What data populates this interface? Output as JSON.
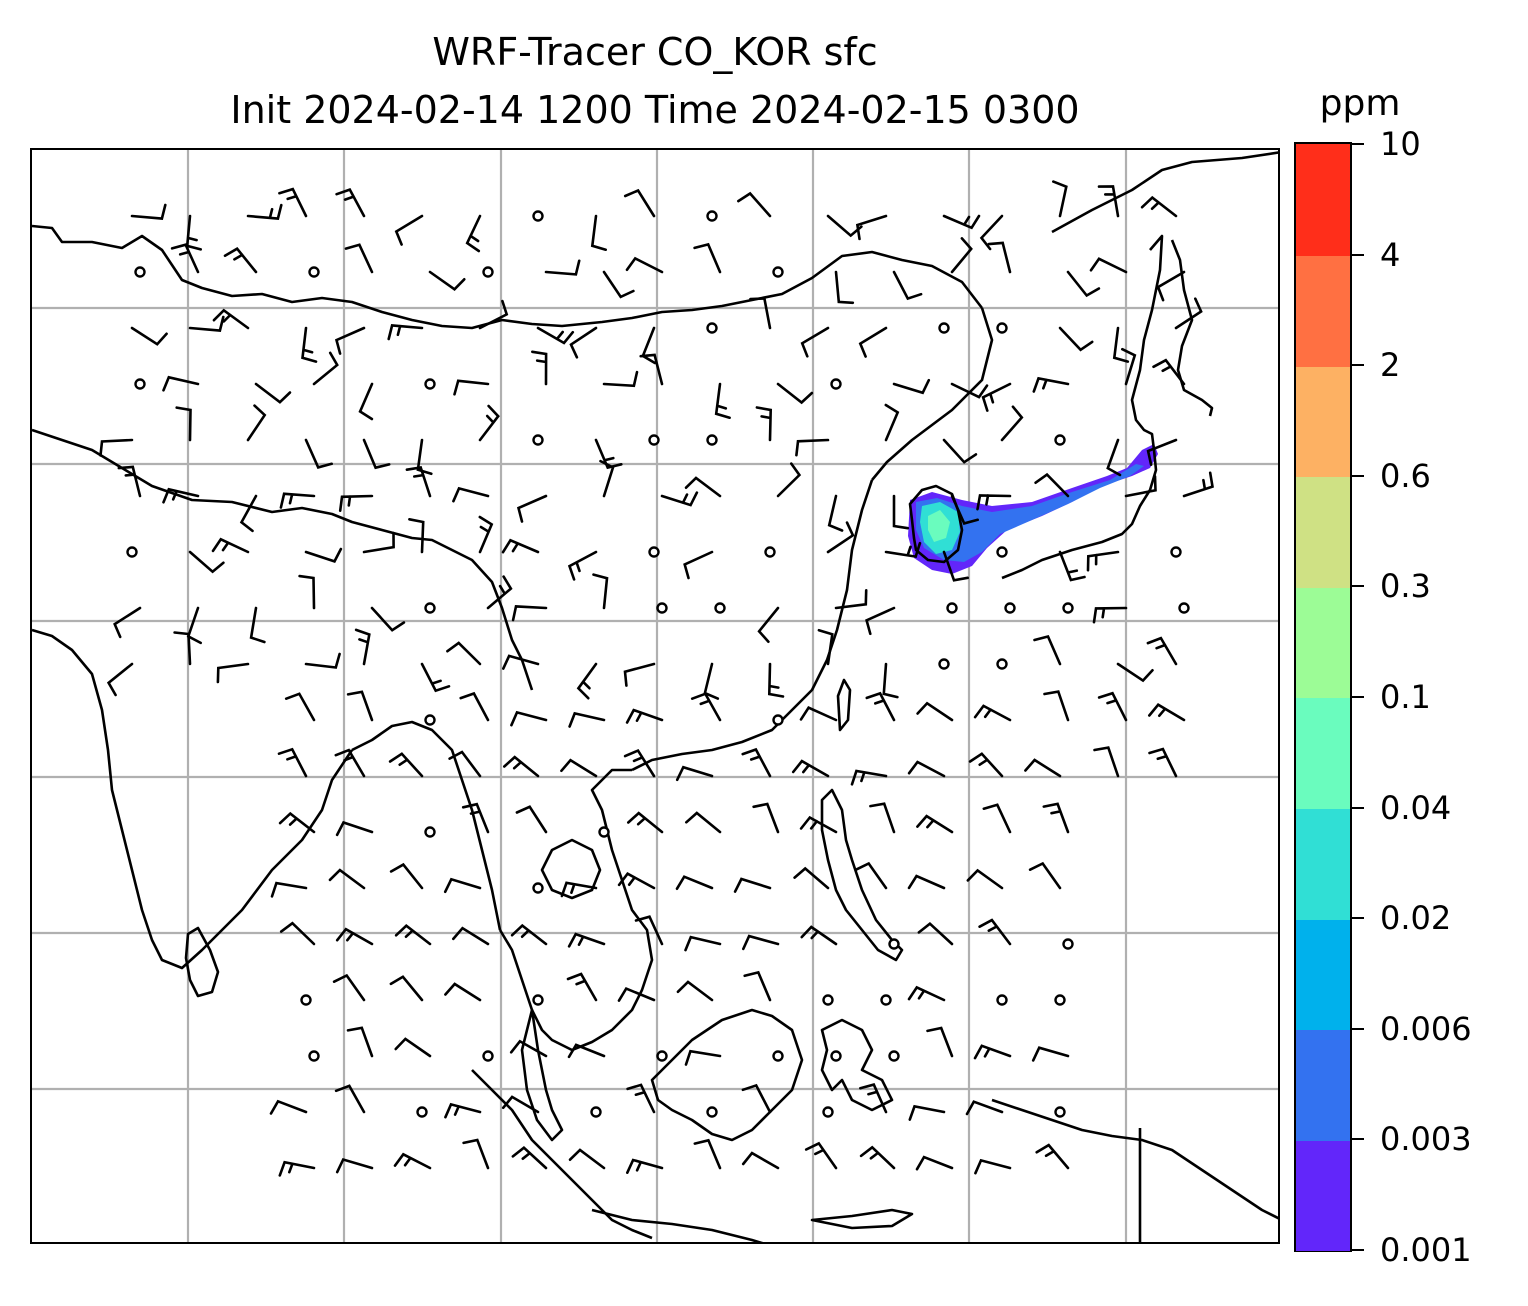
{
  "title": {
    "line1": "WRF-Tracer CO_KOR sfc",
    "line2": "Init 2024-02-14 1200 Time 2024-02-15 0300"
  },
  "colorbar": {
    "unit": "ppm",
    "tick_labels": [
      "0.001",
      "0.003",
      "0.006",
      "0.02",
      "0.04",
      "0.1",
      "0.3",
      "0.6",
      "2",
      "4",
      "10"
    ],
    "colors": [
      "#6226fa",
      "#3372f0",
      "#00b1ec",
      "#30dfd5",
      "#6afcbe",
      "#9cfc96",
      "#cfe184",
      "#fdb163",
      "#ff7042",
      "#ff2e1a"
    ]
  },
  "map": {
    "type": "filled contour map with wind barbs",
    "coastline_color": "#000000",
    "gridline_color": "#b0b0b0",
    "tracer_plume_region": "Korean Peninsula to Japan",
    "tracer_range_shown": "0.001–0.04",
    "wind_barb_color": "#000000",
    "calm_marker": "circle"
  }
}
